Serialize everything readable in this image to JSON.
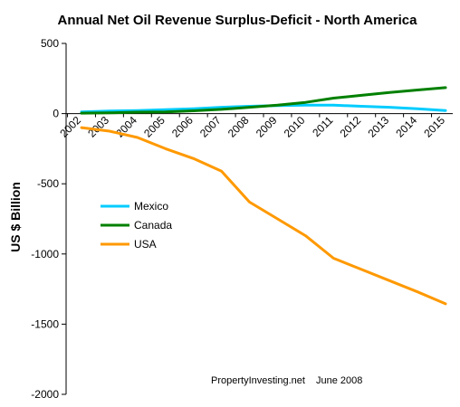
{
  "chart_data": {
    "type": "line",
    "title": "Annual Net Oil Revenue Surplus-Deficit - North America",
    "ylabel": "US $ Billion",
    "xlabel": "",
    "x": [
      "2002",
      "2003",
      "2004",
      "2005",
      "2006",
      "2007",
      "2008",
      "2009",
      "2010",
      "2011",
      "2012",
      "2013",
      "2014",
      "2015"
    ],
    "ylim": [
      -2000,
      500
    ],
    "y_ticks": [
      "500",
      "0",
      "-500",
      "-1000",
      "-1500",
      "-2000"
    ],
    "series": [
      {
        "name": "Mexico",
        "color": "#00ccff",
        "values": [
          12,
          18,
          22,
          28,
          35,
          45,
          52,
          57,
          60,
          60,
          52,
          45,
          35,
          22
        ]
      },
      {
        "name": "Canada",
        "color": "#008000",
        "values": [
          3,
          5,
          10,
          12,
          20,
          30,
          45,
          60,
          80,
          110,
          130,
          150,
          168,
          185
        ]
      },
      {
        "name": "USA",
        "color": "#ff9900",
        "values": [
          -100,
          -125,
          -170,
          -250,
          -320,
          -410,
          -630,
          -750,
          -870,
          -1030,
          -1110,
          -1190,
          -1270,
          -1355
        ]
      }
    ],
    "legend": {
      "placement": "left-middle",
      "entries": [
        "Mexico",
        "Canada",
        "USA"
      ]
    },
    "annotation": {
      "source": "PropertyInvesting.net",
      "date": "June 2008"
    },
    "grid": false
  }
}
